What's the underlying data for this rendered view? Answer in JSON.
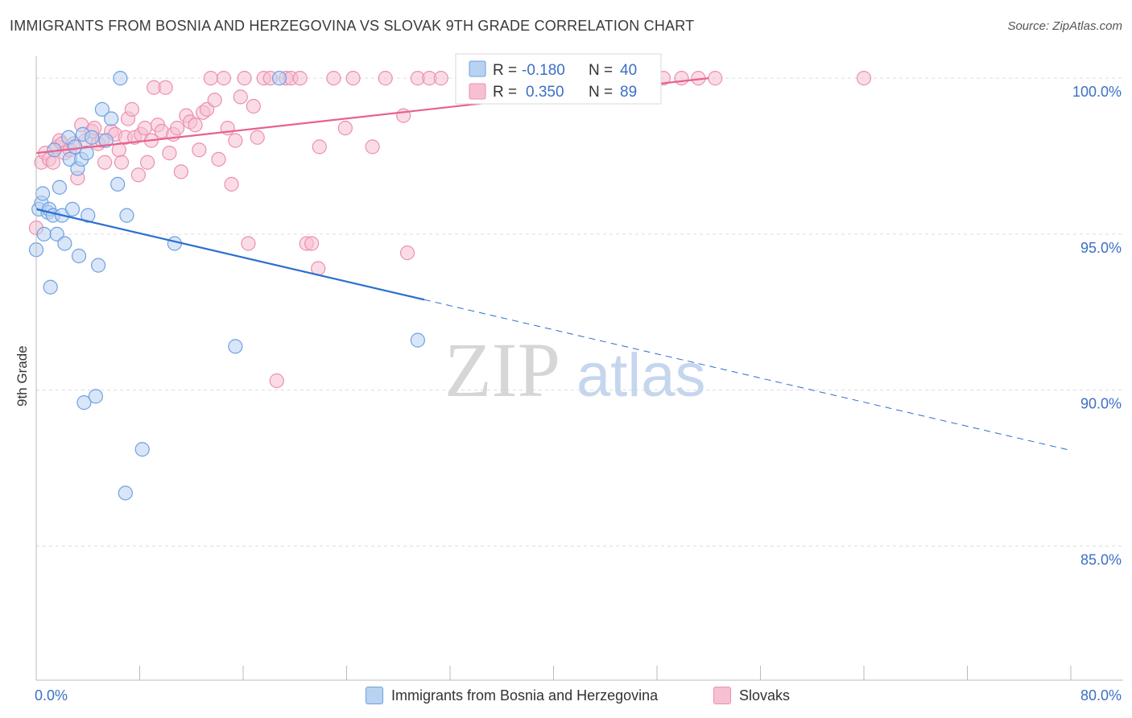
{
  "header": {
    "title": "IMMIGRANTS FROM BOSNIA AND HERZEGOVINA VS SLOVAK 9TH GRADE CORRELATION CHART",
    "source": "Source: ZipAtlas.com"
  },
  "watermark": {
    "zip": "ZIP",
    "atlas": "atlas"
  },
  "colors": {
    "blue_fill": "#b8d2f2",
    "blue_stroke": "#6fa0e0",
    "blue_line": "#2a6fd0",
    "pink_fill": "#f6c0d2",
    "pink_stroke": "#ec8fae",
    "pink_line": "#e8628e",
    "tick_label": "#3c6fc6",
    "grid": "#dddddd"
  },
  "legend_box": {
    "rows": [
      {
        "r_label": "R =",
        "r_value": "-0.180",
        "n_label": "N =",
        "n_value": "40"
      },
      {
        "r_label": "R =",
        "r_value": "0.350",
        "n_label": "N =",
        "n_value": "89"
      }
    ]
  },
  "chart_data": {
    "type": "scatter",
    "title": "IMMIGRANTS FROM BOSNIA AND HERZEGOVINA VS SLOVAK 9TH GRADE CORRELATION CHART",
    "xlabel": "",
    "ylabel": "9th Grade",
    "xlim": [
      0,
      80
    ],
    "ylim": [
      80.7,
      100.7
    ],
    "x_tick_labels": [
      "0.0%",
      "80.0%"
    ],
    "y_ticks": [
      100,
      95,
      90,
      85
    ],
    "y_tick_labels": [
      "100.0%",
      "95.0%",
      "90.0%",
      "85.0%"
    ],
    "grid": true,
    "series": [
      {
        "name": "Immigrants from Bosnia and Herzegovina",
        "color": "blue",
        "R": -0.18,
        "N": 40,
        "trend": {
          "x0": 0,
          "y0": 95.8,
          "x1": 30,
          "y1": 92.9,
          "x_dash_end": 80
        },
        "points": [
          [
            0.0,
            94.5
          ],
          [
            0.2,
            95.8
          ],
          [
            0.4,
            96.0
          ],
          [
            0.5,
            96.3
          ],
          [
            0.6,
            95.0
          ],
          [
            0.9,
            95.7
          ],
          [
            1.0,
            95.8
          ],
          [
            1.1,
            93.3
          ],
          [
            1.3,
            95.6
          ],
          [
            1.4,
            97.7
          ],
          [
            1.6,
            95.0
          ],
          [
            1.8,
            96.5
          ],
          [
            2.0,
            95.6
          ],
          [
            2.2,
            94.7
          ],
          [
            2.5,
            98.1
          ],
          [
            2.6,
            97.4
          ],
          [
            2.8,
            95.8
          ],
          [
            3.0,
            97.8
          ],
          [
            3.2,
            97.1
          ],
          [
            3.3,
            94.3
          ],
          [
            3.5,
            97.4
          ],
          [
            3.6,
            98.2
          ],
          [
            3.7,
            89.6
          ],
          [
            3.9,
            97.6
          ],
          [
            4.0,
            95.6
          ],
          [
            4.3,
            98.1
          ],
          [
            4.6,
            89.8
          ],
          [
            4.8,
            94.0
          ],
          [
            5.1,
            99.0
          ],
          [
            5.4,
            98.0
          ],
          [
            5.8,
            98.7
          ],
          [
            6.3,
            96.6
          ],
          [
            6.5,
            100.0
          ],
          [
            6.9,
            86.7
          ],
          [
            7.0,
            95.6
          ],
          [
            8.2,
            88.1
          ],
          [
            10.7,
            94.7
          ],
          [
            15.4,
            91.4
          ],
          [
            18.8,
            100.0
          ],
          [
            29.5,
            91.6
          ]
        ]
      },
      {
        "name": "Slovaks",
        "color": "pink",
        "R": 0.35,
        "N": 89,
        "trend": {
          "x0": 0,
          "y0": 97.6,
          "x1": 52,
          "y1": 100.0
        },
        "points": [
          [
            0.0,
            95.2
          ],
          [
            0.4,
            97.3
          ],
          [
            0.7,
            97.6
          ],
          [
            1.0,
            97.4
          ],
          [
            1.3,
            97.3
          ],
          [
            1.6,
            97.8
          ],
          [
            1.8,
            98.0
          ],
          [
            2.0,
            97.9
          ],
          [
            2.2,
            97.6
          ],
          [
            2.6,
            97.7
          ],
          [
            2.9,
            97.9
          ],
          [
            3.2,
            96.8
          ],
          [
            3.5,
            98.5
          ],
          [
            3.8,
            98.0
          ],
          [
            4.3,
            98.3
          ],
          [
            4.5,
            98.4
          ],
          [
            4.8,
            97.9
          ],
          [
            5.1,
            98.0
          ],
          [
            5.3,
            97.3
          ],
          [
            5.8,
            98.3
          ],
          [
            6.1,
            98.2
          ],
          [
            6.4,
            97.7
          ],
          [
            6.6,
            97.3
          ],
          [
            6.9,
            98.1
          ],
          [
            7.1,
            98.7
          ],
          [
            7.4,
            99.0
          ],
          [
            7.6,
            98.1
          ],
          [
            7.9,
            96.9
          ],
          [
            8.1,
            98.2
          ],
          [
            8.4,
            98.4
          ],
          [
            8.6,
            97.3
          ],
          [
            8.9,
            98.0
          ],
          [
            9.1,
            99.7
          ],
          [
            9.4,
            98.5
          ],
          [
            9.7,
            98.3
          ],
          [
            10.0,
            99.7
          ],
          [
            10.3,
            97.6
          ],
          [
            10.6,
            98.2
          ],
          [
            10.9,
            98.4
          ],
          [
            11.2,
            97.0
          ],
          [
            11.6,
            98.8
          ],
          [
            11.9,
            98.6
          ],
          [
            12.3,
            98.5
          ],
          [
            12.6,
            97.7
          ],
          [
            12.9,
            98.9
          ],
          [
            13.2,
            99.0
          ],
          [
            13.5,
            100.0
          ],
          [
            13.8,
            99.3
          ],
          [
            14.1,
            97.4
          ],
          [
            14.5,
            100.0
          ],
          [
            14.8,
            98.4
          ],
          [
            15.1,
            96.6
          ],
          [
            15.4,
            98.0
          ],
          [
            15.8,
            99.4
          ],
          [
            16.1,
            100.0
          ],
          [
            16.4,
            94.7
          ],
          [
            16.8,
            99.1
          ],
          [
            17.1,
            98.1
          ],
          [
            17.6,
            100.0
          ],
          [
            18.1,
            100.0
          ],
          [
            18.6,
            90.3
          ],
          [
            19.3,
            100.0
          ],
          [
            19.7,
            100.0
          ],
          [
            20.4,
            100.0
          ],
          [
            20.9,
            94.7
          ],
          [
            21.3,
            94.7
          ],
          [
            21.8,
            93.9
          ],
          [
            21.9,
            97.8
          ],
          [
            23.0,
            100.0
          ],
          [
            23.9,
            98.4
          ],
          [
            24.5,
            100.0
          ],
          [
            26.0,
            97.8
          ],
          [
            27.0,
            100.0
          ],
          [
            28.4,
            98.8
          ],
          [
            28.7,
            94.4
          ],
          [
            29.5,
            100.0
          ],
          [
            30.4,
            100.0
          ],
          [
            31.3,
            100.0
          ],
          [
            34.8,
            100.0
          ],
          [
            36.6,
            100.0
          ],
          [
            40.2,
            100.0
          ],
          [
            41.9,
            100.0
          ],
          [
            44.0,
            100.0
          ],
          [
            45.8,
            100.0
          ],
          [
            48.5,
            100.0
          ],
          [
            49.9,
            100.0
          ],
          [
            51.2,
            100.0
          ],
          [
            52.5,
            100.0
          ],
          [
            64.0,
            100.0
          ]
        ]
      }
    ]
  }
}
